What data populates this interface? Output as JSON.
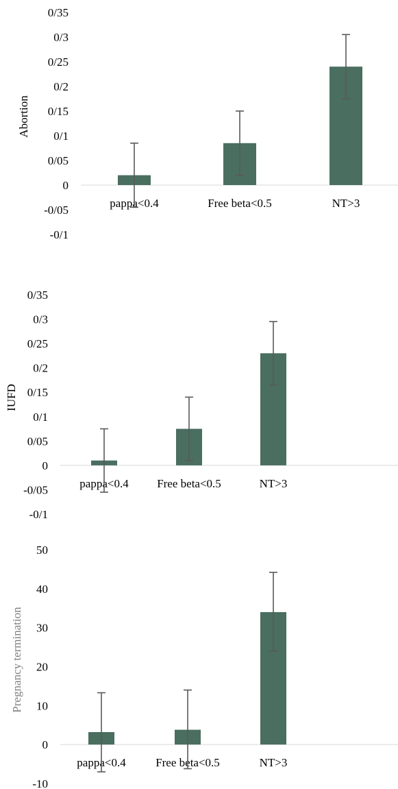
{
  "colors": {
    "bar": "#4a6e60",
    "error": "#595959",
    "axis": "#d9d9d9"
  },
  "chart_data": [
    {
      "type": "bar",
      "title": "",
      "ylabel": "Abortion",
      "categories": [
        "pappa<0.4",
        "Free beta<0.5",
        "NT>3"
      ],
      "values": [
        0.02,
        0.085,
        0.24
      ],
      "error_low": [
        -0.045,
        0.02,
        0.175
      ],
      "error_high": [
        0.085,
        0.15,
        0.305
      ],
      "yticks": [
        -0.1,
        -0.05,
        0,
        0.05,
        0.1,
        0.15,
        0.2,
        0.25,
        0.3,
        0.35
      ],
      "ytick_labels": [
        "-0/1",
        "-0/05",
        "0",
        "0/05",
        "0/1",
        "0/15",
        "0/2",
        "0/25",
        "0/3",
        "0/35"
      ],
      "ylim": [
        -0.1,
        0.35
      ]
    },
    {
      "type": "bar",
      "title": "",
      "ylabel": "IUFD",
      "categories": [
        "pappa<0.4",
        "Free beta<0.5",
        "NT>3"
      ],
      "values": [
        0.01,
        0.075,
        0.23
      ],
      "error_low": [
        -0.055,
        0.01,
        0.165
      ],
      "error_high": [
        0.075,
        0.14,
        0.295
      ],
      "yticks": [
        -0.1,
        -0.05,
        0,
        0.05,
        0.1,
        0.15,
        0.2,
        0.25,
        0.3,
        0.35
      ],
      "ytick_labels": [
        "-0/1",
        "-0/05",
        "0",
        "0/05",
        "0/1",
        "0/15",
        "0/2",
        "0/25",
        "0/3",
        "0/35"
      ],
      "ylim": [
        -0.1,
        0.35
      ]
    },
    {
      "type": "bar",
      "title": "",
      "ylabel": "Pregnancy termination",
      "categories": [
        "pappa<0.4",
        "Free beta<0.5",
        "NT>3"
      ],
      "values": [
        3.2,
        3.8,
        34
      ],
      "error_low": [
        -7,
        -6.2,
        24
      ],
      "error_high": [
        13.3,
        14,
        44.2
      ],
      "yticks": [
        -10,
        0,
        10,
        20,
        30,
        40,
        50
      ],
      "ytick_labels": [
        "-10",
        "0",
        "10",
        "20",
        "30",
        "40",
        "50"
      ],
      "ylim": [
        -10,
        50
      ]
    }
  ]
}
